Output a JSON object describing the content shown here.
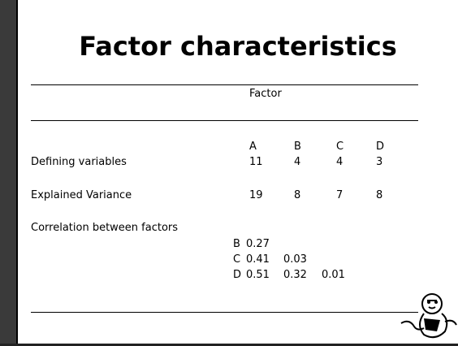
{
  "title": "Factor characteristics",
  "table": {
    "group_header": "Factor",
    "columns": [
      "A",
      "B",
      "C",
      "D"
    ],
    "rows": [
      {
        "label": "Defining variables",
        "values": [
          11,
          4,
          4,
          3
        ]
      },
      {
        "label": "Explained Variance",
        "values": [
          19,
          8,
          7,
          8
        ]
      }
    ],
    "correlation": {
      "label": "Correlation between factors",
      "rows": [
        {
          "factor": "B",
          "values": [
            0.27
          ]
        },
        {
          "factor": "C",
          "values": [
            0.41,
            0.03
          ]
        },
        {
          "factor": "D",
          "values": [
            0.51,
            0.32,
            0.01
          ]
        }
      ]
    }
  }
}
